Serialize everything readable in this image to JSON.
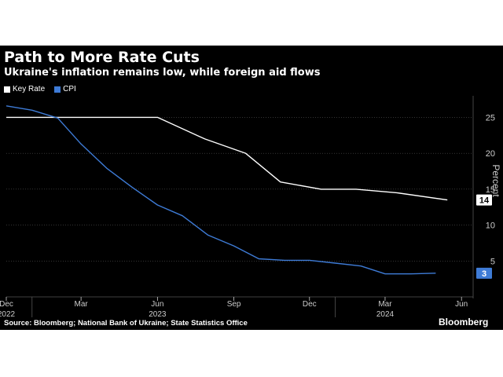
{
  "title": "Path to More Rate Cuts",
  "subtitle": "Ukraine's inflation remains low, while foreign aid flows",
  "source": "Source: Bloomberg; National Bank of Ukraine; State Statistics Office",
  "brand": "Bloomberg",
  "colors": {
    "background": "#000000",
    "key_rate": "#ffffff",
    "cpi": "#3e7bd6",
    "grid": "#555555",
    "axis_text": "#cccccc"
  },
  "chart_data": {
    "type": "line",
    "title": "Path to More Rate Cuts",
    "subtitle": "Ukraine's inflation remains low, while foreign aid flows",
    "ylabel": "Percent",
    "ylim": [
      0,
      28
    ],
    "y_ticks": [
      "5",
      "10",
      "15",
      "20",
      "25"
    ],
    "y_tick_values": [
      5,
      10,
      15,
      20,
      25
    ],
    "x_ticks": [
      {
        "label": "Dec",
        "date": "2022-12-01"
      },
      {
        "label": "Mar",
        "date": "2023-03-01"
      },
      {
        "label": "Jun",
        "date": "2023-06-01"
      },
      {
        "label": "Sep",
        "date": "2023-09-01"
      },
      {
        "label": "Dec",
        "date": "2023-12-01"
      },
      {
        "label": "Mar",
        "date": "2024-03-01"
      },
      {
        "label": "Jun",
        "date": "2024-06-01"
      }
    ],
    "year_labels": [
      {
        "label": "2022",
        "date": "2022-12-01"
      },
      {
        "label": "2023",
        "date": "2023-06-01"
      },
      {
        "label": "2024",
        "date": "2024-03-01"
      }
    ],
    "xlim": [
      "2022-12-01",
      "2024-06-15"
    ],
    "legend_position": "top-left",
    "grid": true,
    "series": [
      {
        "name": "Key Rate",
        "color": "#ffffff",
        "end_label": "14",
        "points": [
          {
            "x": "2022-12-01",
            "y": 25
          },
          {
            "x": "2023-06-01",
            "y": 25
          },
          {
            "x": "2023-07-28",
            "y": 22
          },
          {
            "x": "2023-09-15",
            "y": 20
          },
          {
            "x": "2023-10-27",
            "y": 16
          },
          {
            "x": "2023-12-15",
            "y": 15
          },
          {
            "x": "2024-01-26",
            "y": 15
          },
          {
            "x": "2024-03-15",
            "y": 14.5
          },
          {
            "x": "2024-05-15",
            "y": 13.5
          }
        ]
      },
      {
        "name": "CPI",
        "color": "#3e7bd6",
        "end_label": "3",
        "points": [
          {
            "x": "2022-12-01",
            "y": 26.6
          },
          {
            "x": "2023-01-01",
            "y": 26.0
          },
          {
            "x": "2023-02-01",
            "y": 24.9
          },
          {
            "x": "2023-03-01",
            "y": 21.3
          },
          {
            "x": "2023-04-01",
            "y": 17.9
          },
          {
            "x": "2023-05-01",
            "y": 15.3
          },
          {
            "x": "2023-06-01",
            "y": 12.8
          },
          {
            "x": "2023-07-01",
            "y": 11.3
          },
          {
            "x": "2023-08-01",
            "y": 8.6
          },
          {
            "x": "2023-09-01",
            "y": 7.1
          },
          {
            "x": "2023-10-01",
            "y": 5.3
          },
          {
            "x": "2023-11-01",
            "y": 5.1
          },
          {
            "x": "2023-12-01",
            "y": 5.1
          },
          {
            "x": "2024-01-01",
            "y": 4.7
          },
          {
            "x": "2024-02-01",
            "y": 4.3
          },
          {
            "x": "2024-03-01",
            "y": 3.2
          },
          {
            "x": "2024-04-01",
            "y": 3.2
          },
          {
            "x": "2024-05-01",
            "y": 3.3
          }
        ]
      }
    ]
  }
}
